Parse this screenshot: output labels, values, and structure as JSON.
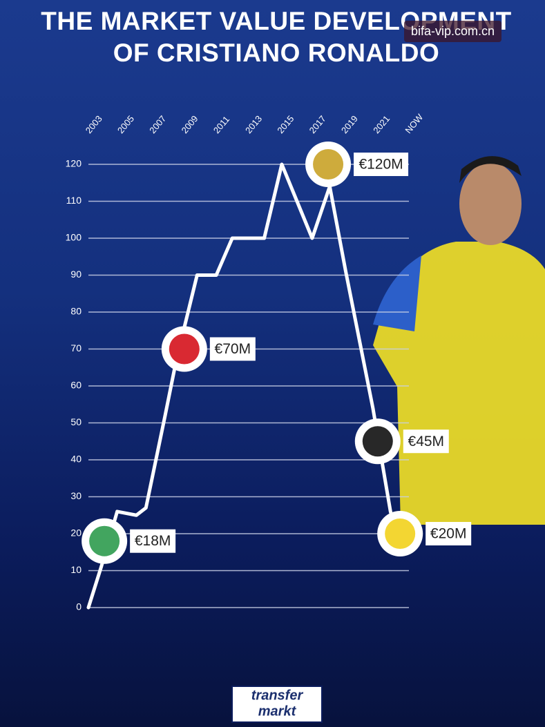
{
  "chart_data": {
    "type": "line",
    "title": "THE MARKET VALUE DEVELOPMENT OF CRISTIANO RONALDO",
    "watermark": "bifa-vip.com.cn",
    "source_logo": [
      "transfer",
      "markt"
    ],
    "x": [
      2002.6,
      2003.4,
      2004.4,
      2005.6,
      2006.2,
      2007.4,
      2008.1,
      2009.4,
      2010.6,
      2011.6,
      2013.6,
      2014.7,
      2016.6,
      2017.7,
      2018.7,
      2020.4,
      2021.5,
      2021.9
    ],
    "series": [
      {
        "color": "#ffffff",
        "values": [
          0,
          11,
          26,
          25,
          27,
          52,
          67,
          90,
          90,
          100,
          100,
          120,
          100,
          114,
          91,
          54,
          26,
          20
        ]
      }
    ],
    "xlim": [
      2002.6,
      2023
    ],
    "xticks": [
      2003,
      2005,
      2007,
      2009,
      2011,
      2013,
      2015,
      2017,
      2019,
      2021,
      {
        "value": 2023,
        "label": "NOW"
      }
    ],
    "ylim": [
      0,
      120
    ],
    "yticks": [
      0,
      10,
      20,
      30,
      40,
      50,
      60,
      70,
      80,
      90,
      100,
      110,
      120
    ],
    "grid": true,
    "annotations": [
      {
        "label": "€18M",
        "x": 2003.6,
        "value": 18,
        "color": "#2e9b4e"
      },
      {
        "label": "€70M",
        "x": 2008.6,
        "value": 70,
        "color": "#d5121c"
      },
      {
        "label": "€120M",
        "x": 2017.6,
        "value": 120,
        "color": "#c9a227"
      },
      {
        "label": "€45M",
        "x": 2020.7,
        "value": 45,
        "color": "#111111"
      },
      {
        "label": "€20M",
        "x": 2022.1,
        "value": 20,
        "color": "#f2d21c"
      }
    ]
  }
}
